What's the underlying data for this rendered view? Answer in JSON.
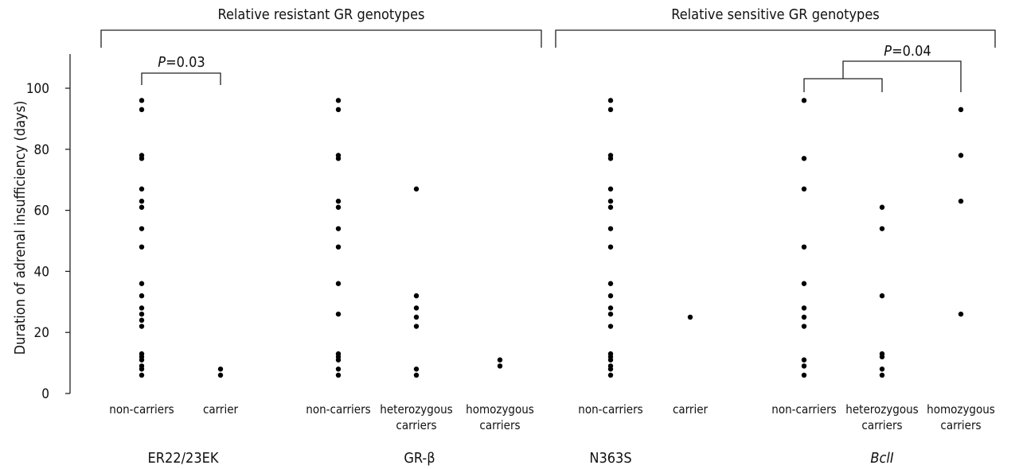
{
  "chart_data": {
    "type": "scatter",
    "ylabel": "Duration of adrenal insufficiency (days)",
    "ylim": [
      0,
      110
    ],
    "yticks": [
      0,
      20,
      40,
      60,
      80,
      100
    ],
    "grid": false,
    "brackets": [
      {
        "label": "Relative resistant GR genotypes"
      },
      {
        "label": "Relative sensitive GR genotypes"
      }
    ],
    "comparisons": [
      {
        "label_prefix": "P",
        "label_value": "=0.03"
      },
      {
        "label_prefix": "P",
        "label_value": "=0.04"
      }
    ],
    "groups": [
      {
        "name": "ER22/23EK",
        "italic": false,
        "categories": [
          {
            "label": [
              "non-carriers"
            ],
            "values": [
              6,
              8,
              9,
              11,
              12,
              13,
              22,
              24,
              26,
              28,
              32,
              36,
              48,
              54,
              61,
              63,
              67,
              77,
              78,
              93,
              96
            ]
          },
          {
            "label": [
              "carrier"
            ],
            "values": [
              6,
              8
            ]
          }
        ]
      },
      {
        "name": "GR-β",
        "italic": false,
        "categories": [
          {
            "label": [
              "non-carriers"
            ],
            "values": [
              6,
              8,
              11,
              12,
              13,
              26,
              36,
              48,
              54,
              61,
              63,
              77,
              78,
              93,
              96
            ]
          },
          {
            "label": [
              "heterozygous",
              "carriers"
            ],
            "values": [
              6,
              8,
              22,
              25,
              28,
              32,
              67
            ]
          },
          {
            "label": [
              "homozygous",
              "carriers"
            ],
            "values": [
              9,
              11
            ]
          }
        ]
      },
      {
        "name": "N363S",
        "italic": false,
        "categories": [
          {
            "label": [
              "non-carriers"
            ],
            "values": [
              6,
              8,
              9,
              11,
              12,
              13,
              22,
              26,
              28,
              32,
              36,
              48,
              54,
              61,
              63,
              67,
              77,
              78,
              93,
              96
            ]
          },
          {
            "label": [
              "carrier"
            ],
            "values": [
              25
            ]
          }
        ]
      },
      {
        "name": "BclI",
        "italic": true,
        "categories": [
          {
            "label": [
              "non-carriers"
            ],
            "values": [
              6,
              9,
              11,
              22,
              25,
              28,
              36,
              48,
              67,
              77,
              96
            ]
          },
          {
            "label": [
              "heterozygous",
              "carriers"
            ],
            "values": [
              6,
              8,
              12,
              13,
              32,
              54,
              61
            ]
          },
          {
            "label": [
              "homozygous",
              "carriers"
            ],
            "values": [
              26,
              63,
              78,
              93
            ]
          }
        ]
      }
    ]
  }
}
